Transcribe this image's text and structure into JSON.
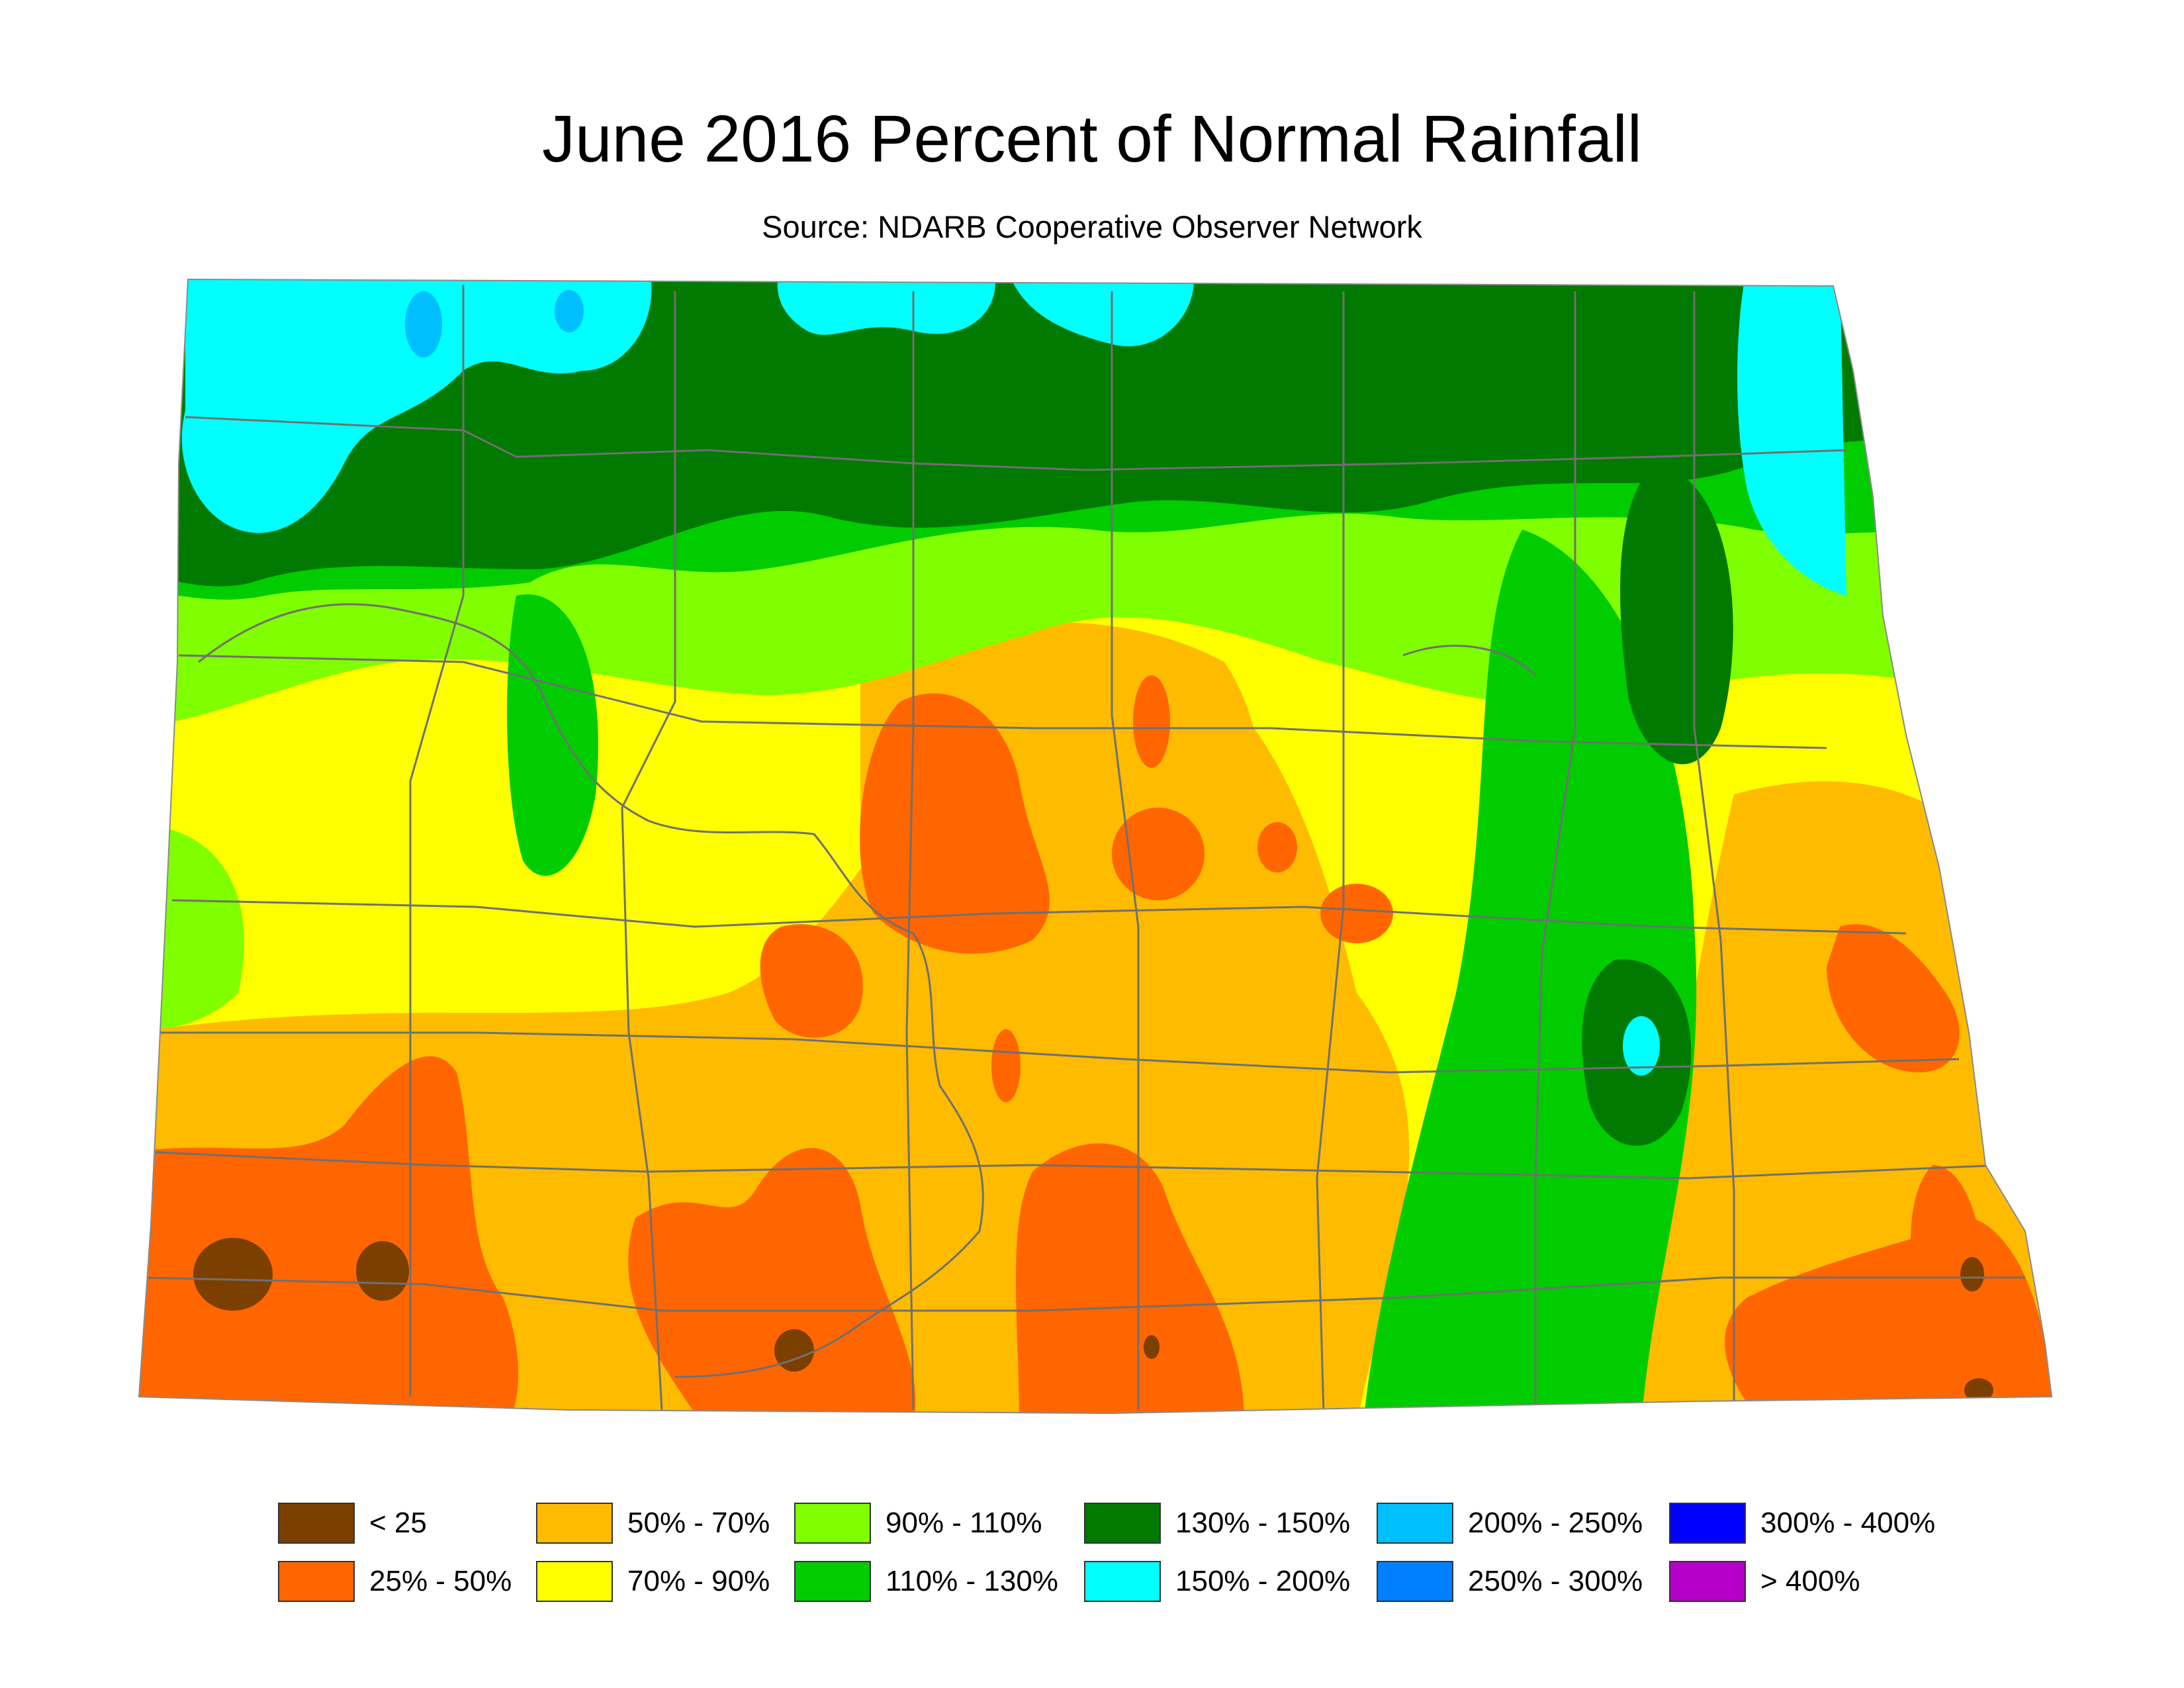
{
  "title": "June 2016 Percent of Normal Rainfall",
  "subtitle": "Source: NDARB Cooperative Observer Network",
  "colors": {
    "lt25": "#7b3f00",
    "p25_50": "#ff6600",
    "p50_70": "#ffbb00",
    "p70_90": "#ffff00",
    "p90_110": "#80ff00",
    "p110_130": "#00cc00",
    "p130_150": "#007a00",
    "p150_200": "#00ffff",
    "p200_250": "#00bfff",
    "p250_300": "#0080ff",
    "p300_400": "#0000ff",
    "gt400": "#b400c8",
    "county_lines": "#707070"
  },
  "legend": [
    {
      "label": "< 25",
      "color": "#7b3f00"
    },
    {
      "label": "25% - 50%",
      "color": "#ff6600"
    },
    {
      "label": "50% - 70%",
      "color": "#ffbb00"
    },
    {
      "label": "70% - 90%",
      "color": "#ffff00"
    },
    {
      "label": "90% - 110%",
      "color": "#80ff00"
    },
    {
      "label": "110% - 130%",
      "color": "#00cc00"
    },
    {
      "label": "130% - 150%",
      "color": "#007a00"
    },
    {
      "label": "150% - 200%",
      "color": "#00ffff"
    },
    {
      "label": "200% - 250%",
      "color": "#00bfff"
    },
    {
      "label": "250% - 300%",
      "color": "#0080ff"
    },
    {
      "label": "300% - 400%",
      "color": "#0000ff"
    },
    {
      "label": "> 400%",
      "color": "#b400c8"
    }
  ]
}
